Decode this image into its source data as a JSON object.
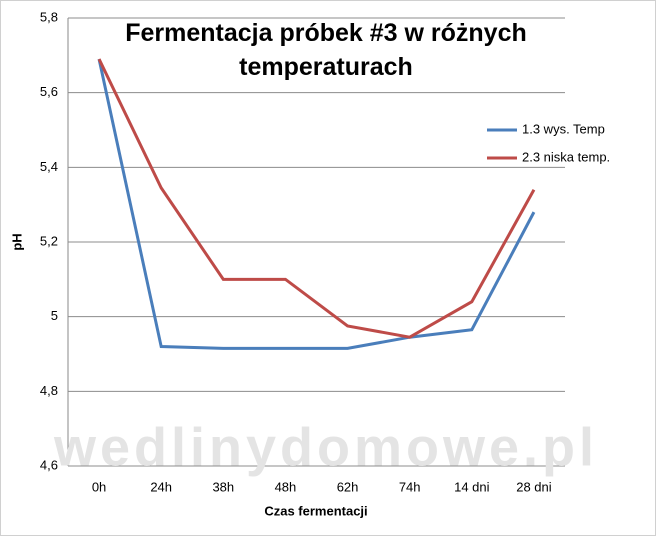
{
  "chart_data": {
    "type": "line",
    "title": "Fermentacja próbek #3 w różnych temperaturach",
    "x_label": "Czas fermentacji",
    "y_label": "pH",
    "watermark": "wedlinydomowe.pl",
    "categories": [
      "0h",
      "24h",
      "38h",
      "48h",
      "62h",
      "74h",
      "14 dni",
      "28 dni"
    ],
    "series": [
      {
        "name": "1.3 wys. Temp",
        "color": "#4a7ebb",
        "values": [
          5.69,
          4.92,
          4.915,
          4.915,
          4.915,
          4.945,
          4.965,
          5.28
        ]
      },
      {
        "name": "2.3 niska temp.",
        "color": "#be4b48",
        "values": [
          5.69,
          5.345,
          5.1,
          5.1,
          4.975,
          4.945,
          5.04,
          5.34
        ]
      }
    ],
    "ylim": [
      4.6,
      5.8
    ],
    "yticks": [
      {
        "value": 4.6,
        "label": "4,6"
      },
      {
        "value": 4.8,
        "label": "4,8"
      },
      5,
      {
        "value": 5.2,
        "label": "5,2"
      },
      {
        "value": 5.4,
        "label": "5,4"
      },
      {
        "value": 5.6,
        "label": "5,6"
      },
      {
        "value": 5.8,
        "label": "5,8"
      }
    ],
    "grid": true,
    "legend": "right"
  }
}
